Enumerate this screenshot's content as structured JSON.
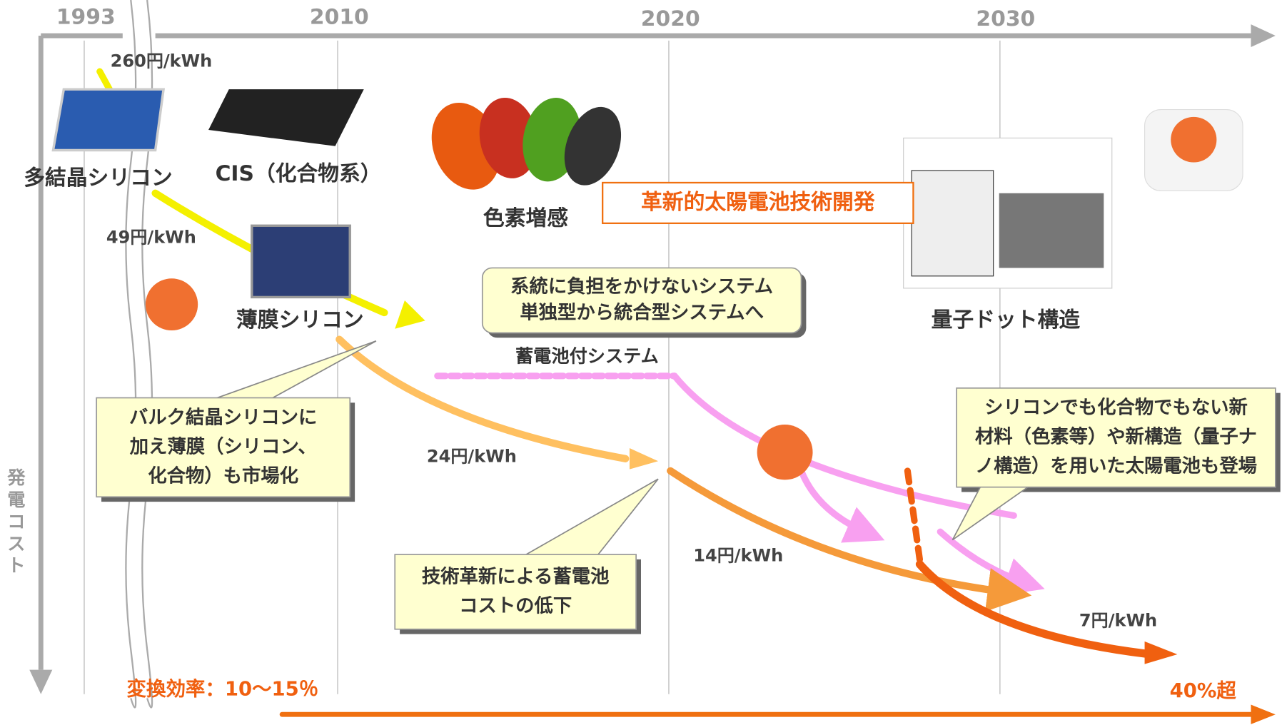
{
  "years": [
    "1993",
    "2010",
    "2020",
    "2030"
  ],
  "axis_label": "発電コスト",
  "technologies": [
    "多結晶シリコン",
    "CIS（化合物系）",
    "薄膜シリコン",
    "色素増感",
    "量子ドット構造"
  ],
  "costs": [
    "260円/kWh",
    "49円/kWh",
    "24円/kWh",
    "14円/kWh",
    "7円/kWh"
  ],
  "program": "革新的太陽電池技術開発",
  "storage_system": "蓄電池付システム",
  "callouts": [
    [
      "バルク結晶シリコンに",
      "加え薄膜（シリコン、",
      "化合物）も市場化"
    ],
    [
      "系統に負担をかけないシステム",
      "単独型から統合型システムへ"
    ],
    [
      "技術革新による蓄電池",
      "コストの低下"
    ],
    [
      "シリコンでも化合物でもない新",
      "材料（色素等）や新構造（量子ナ",
      "ノ構造）を用いた太陽電池も登場"
    ]
  ],
  "efficiency": {
    "start": "変換効率：10～15％",
    "end": "40%超"
  }
}
